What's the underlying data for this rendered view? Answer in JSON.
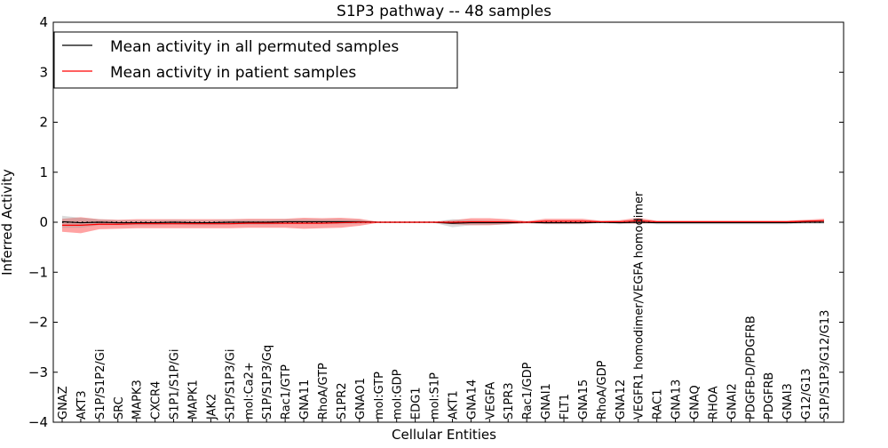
{
  "chart_data": {
    "type": "line",
    "title": "S1P3 pathway -- 48 samples",
    "xlabel": "Cellular Entities",
    "ylabel": "Inferred Activity",
    "ylim": [
      -4,
      4
    ],
    "yticks": [
      -4,
      -3,
      -2,
      -1,
      0,
      1,
      2,
      3,
      4
    ],
    "ytick_labels": [
      "−4",
      "−3",
      "−2",
      "−1",
      "0",
      "1",
      "2",
      "3",
      "4"
    ],
    "legend_position": "top-left",
    "categories": [
      "GNAZ",
      "AKT3",
      "S1P/S1P2/Gi",
      "SRC",
      "MAPK3",
      "CXCR4",
      "S1P1/S1P/Gi",
      "MAPK1",
      "JAK2",
      "S1P/S1P3/Gi",
      "mol:Ca2+",
      "S1P/S1P3/Gq",
      "Rac1/GTP",
      "GNA11",
      "RhoA/GTP",
      "S1PR2",
      "GNAO1",
      "mol:GTP",
      "mol:GDP",
      "EDG1",
      "mol:S1P",
      "AKT1",
      "GNA14",
      "VEGFA",
      "S1PR3",
      "Rac1/GDP",
      "GNAI1",
      "FLT1",
      "GNA15",
      "RhoA/GDP",
      "GNA12",
      "VEGFR1 homodimer/VEGFA homodimer",
      "RAC1",
      "GNA13",
      "GNAQ",
      "RHOA",
      "GNAI2",
      "PDGFB-D/PDGFRB",
      "PDGFRB",
      "GNAI3",
      "G12/G13",
      "S1P/S1P3/G12/G13"
    ],
    "series": [
      {
        "name": "Mean activity in all permuted samples",
        "color": "#000000",
        "values": [
          0.01,
          -0.01,
          0,
          -0.01,
          -0.01,
          -0.01,
          0,
          -0.01,
          -0.01,
          0,
          0,
          0,
          0.01,
          0.01,
          0.01,
          0.01,
          0.01,
          0,
          0,
          0,
          0,
          -0.02,
          -0.01,
          -0.01,
          -0.01,
          0,
          -0.01,
          -0.01,
          -0.01,
          0,
          -0.01,
          0,
          -0.01,
          -0.01,
          -0.01,
          -0.01,
          -0.01,
          -0.01,
          -0.01,
          -0.01,
          0,
          0
        ],
        "band": [
          0.12,
          0.1,
          0.06,
          0.05,
          0.05,
          0.05,
          0.05,
          0.05,
          0.05,
          0.05,
          0.05,
          0.05,
          0.05,
          0.05,
          0.05,
          0.05,
          0.04,
          0.01,
          0.01,
          0.01,
          0.01,
          0.08,
          0.05,
          0.04,
          0.03,
          0.02,
          0.03,
          0.03,
          0.03,
          0.02,
          0.03,
          0.02,
          0.03,
          0.03,
          0.03,
          0.03,
          0.03,
          0.03,
          0.03,
          0.03,
          0.03,
          0.03
        ]
      },
      {
        "name": "Mean activity in patient samples",
        "color": "#ff0000",
        "values": [
          -0.06,
          -0.06,
          -0.04,
          -0.04,
          -0.03,
          -0.03,
          -0.03,
          -0.03,
          -0.03,
          -0.03,
          -0.02,
          -0.02,
          -0.02,
          -0.02,
          -0.02,
          -0.01,
          0,
          0,
          0,
          0,
          0,
          0,
          0.01,
          0.01,
          0.01,
          0,
          0.02,
          0.02,
          0.02,
          0.01,
          0.01,
          0.03,
          0.01,
          0.01,
          0.01,
          0.01,
          0.01,
          0.01,
          0.01,
          0.01,
          0.02,
          0.03
        ],
        "band": [
          0.13,
          0.16,
          0.1,
          0.09,
          0.09,
          0.09,
          0.09,
          0.09,
          0.09,
          0.09,
          0.09,
          0.09,
          0.09,
          0.11,
          0.1,
          0.1,
          0.07,
          0.01,
          0.01,
          0.01,
          0.01,
          0.04,
          0.07,
          0.07,
          0.05,
          0.02,
          0.05,
          0.05,
          0.05,
          0.02,
          0.03,
          0.06,
          0.02,
          0.02,
          0.02,
          0.02,
          0.02,
          0.02,
          0.02,
          0.02,
          0.03,
          0.04
        ]
      }
    ]
  }
}
